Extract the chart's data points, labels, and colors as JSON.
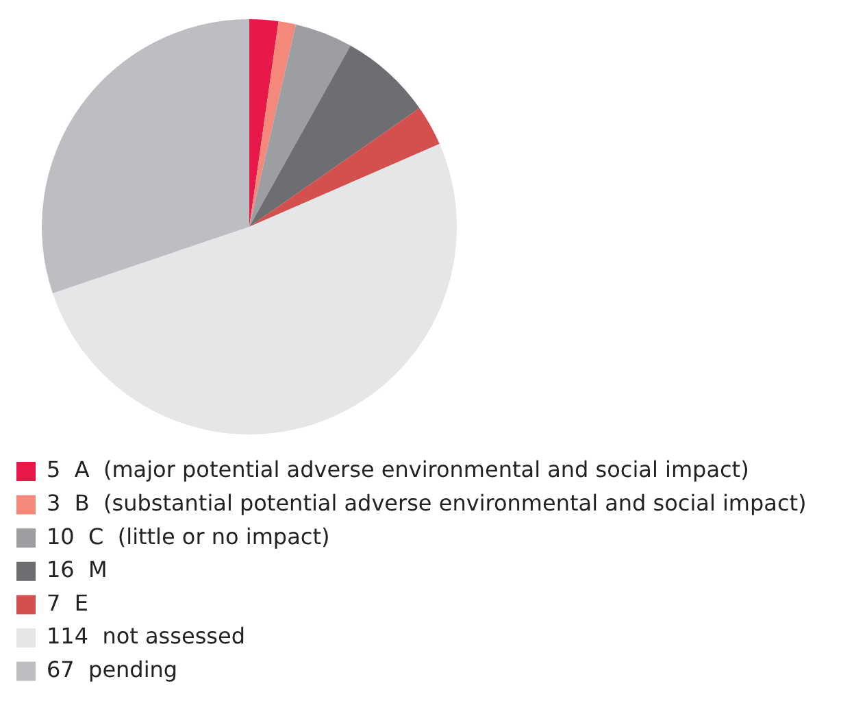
{
  "chart_data": {
    "type": "pie",
    "categories": [
      "A  (major potential adverse environmental and social impact)",
      "B  (substantial potential adverse environmental and social impact)",
      "C  (little or no impact)",
      "M",
      "E",
      "not assessed",
      "pending"
    ],
    "values": [
      5,
      3,
      10,
      16,
      7,
      114,
      67
    ],
    "value_labels": [
      "5",
      "3",
      "10",
      "16",
      "7",
      "114",
      "67"
    ],
    "colors": [
      "#e8194a",
      "#f4887a",
      "#9d9ea2",
      "#6d6e71",
      "#d4504f",
      "#e5e6e7",
      "#bdbec1"
    ],
    "legend": "bottom"
  }
}
